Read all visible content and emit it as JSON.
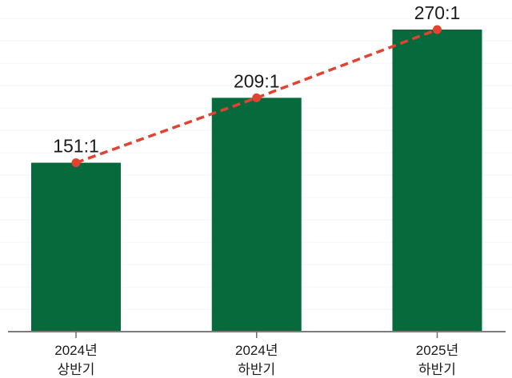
{
  "chart_data": {
    "type": "bar",
    "title": "",
    "categories": [
      "2024년 상반기",
      "2024년 하반기",
      "2025년 하반기"
    ],
    "category_lines": [
      [
        "2024년",
        "상반기"
      ],
      [
        "2024년",
        "하반기"
      ],
      [
        "2025년",
        "하반기"
      ]
    ],
    "values": [
      151,
      209,
      270
    ],
    "value_labels": [
      "151:1",
      "209:1",
      "270:1"
    ],
    "series": [
      {
        "name": "competition-ratio-bars",
        "type": "bar",
        "values": [
          151,
          209,
          270
        ]
      },
      {
        "name": "trend-line-dashed",
        "type": "line",
        "values": [
          151,
          209,
          270
        ],
        "style": "dashed",
        "markers": "circle"
      }
    ],
    "xlabel": "",
    "ylabel": "",
    "ylim": [
      0,
      290
    ],
    "y_tick_labels_visible": false,
    "grid": "faint-horizontal",
    "legend_position": "none",
    "colors": {
      "bar_fill": "#066a3c",
      "trend_line": "#e14330",
      "marker_fill": "#e14330",
      "axis_line": "#7d7d7d",
      "tick_line": "#6f6f6f",
      "label_text": "#1a1a1a",
      "gridline": "#f5f5f5",
      "background": "#ffffff"
    }
  }
}
